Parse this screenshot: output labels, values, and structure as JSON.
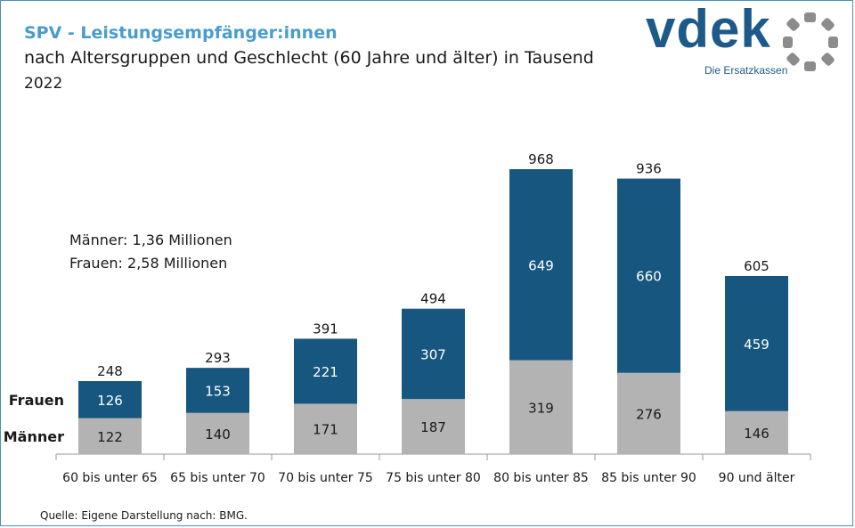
{
  "title": "SPV - Leistungsempfänger:innen",
  "subtitle": "nach Altersgruppen und Geschlecht (60 Jahre und älter) in Tausend",
  "year": "2022",
  "logo": {
    "text": "vdek",
    "tagline": "Die Ersatzkassen"
  },
  "summary": {
    "men": "Männer: 1,36 Millionen",
    "women": "Frauen: 2,58 Millionen"
  },
  "source": "Quelle: Eigene Darstellung nach: BMG.",
  "colors": {
    "frauen": "#17577f",
    "maenner": "#b3b3b3",
    "title": "#4a9ccf",
    "frame": "#4a90b8"
  },
  "chart_data": {
    "type": "bar",
    "stacked": true,
    "categories": [
      "60 bis unter 65",
      "65 bis unter 70",
      "70 bis unter 75",
      "75 bis unter 80",
      "80 bis unter 85",
      "85 bis unter 90",
      "90 und älter"
    ],
    "series": [
      {
        "name": "Männer",
        "values": [
          122,
          140,
          171,
          187,
          319,
          276,
          146
        ]
      },
      {
        "name": "Frauen",
        "values": [
          126,
          153,
          221,
          307,
          649,
          660,
          459
        ]
      }
    ],
    "totals": [
      248,
      293,
      391,
      494,
      968,
      936,
      605
    ],
    "ylim": [
      0,
      968
    ],
    "legend": "left, series names at the first bar"
  }
}
